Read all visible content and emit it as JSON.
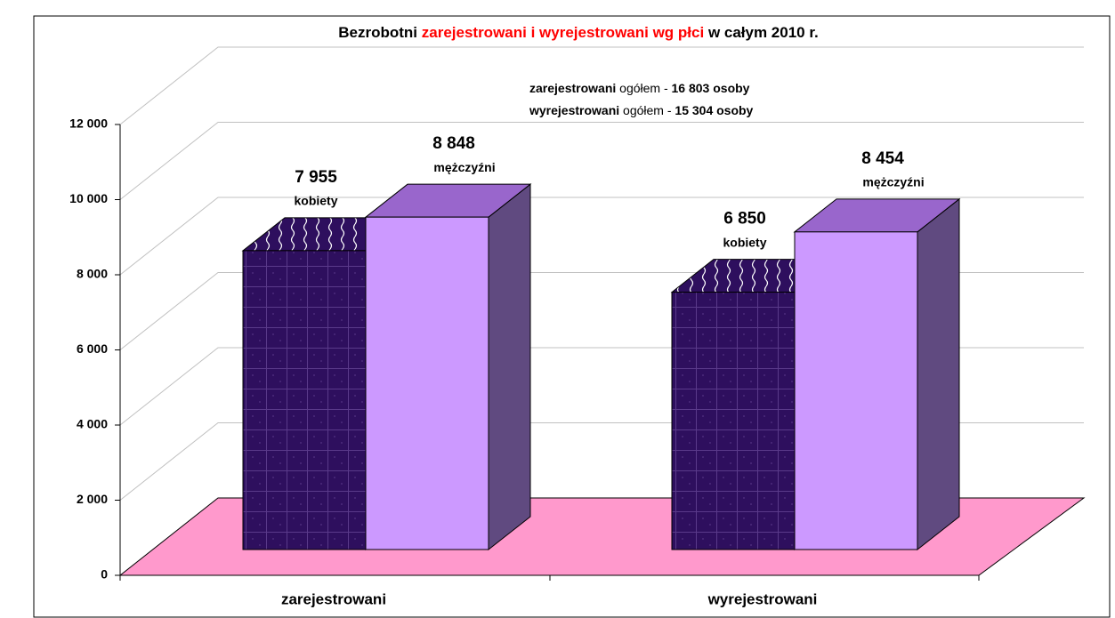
{
  "chart_data": {
    "type": "bar3d",
    "title": [
      "Bezrobotni",
      "zarejestrowani i wyrejestrowani wg płci",
      "w całym  2010 r."
    ],
    "title_colors": [
      "#000000",
      "#ff0000",
      "#000000"
    ],
    "annotations": [
      [
        "zarejestrowani",
        "ogółem -",
        "16 803 osoby"
      ],
      [
        "wyrejestrowani",
        "ogółem -",
        "15 304 osoby"
      ]
    ],
    "categories": [
      "zarejestrowani",
      "wyrejestrowani"
    ],
    "series": [
      {
        "name": "kobiety",
        "color": "#2e0f5e",
        "values": [
          7955,
          6850
        ],
        "value_labels": [
          "7 955",
          "6 850"
        ]
      },
      {
        "name": "mężczyźni",
        "color": "#cc99ff",
        "values": [
          8848,
          8454
        ],
        "value_labels": [
          "8 848",
          "8 454"
        ]
      }
    ],
    "floor_color": "#ff99cc",
    "ylim": [
      0,
      12000
    ],
    "yticks": [
      0,
      {
        "value": 2000,
        "label": "2 000"
      },
      {
        "value": 4000,
        "label": "4 000"
      },
      {
        "value": 6000,
        "label": "6 000"
      },
      {
        "value": 8000,
        "label": "8 000"
      },
      {
        "value": 10000,
        "label": "10 000"
      },
      {
        "value": 12000,
        "label": "12 000"
      }
    ],
    "grid": true
  }
}
